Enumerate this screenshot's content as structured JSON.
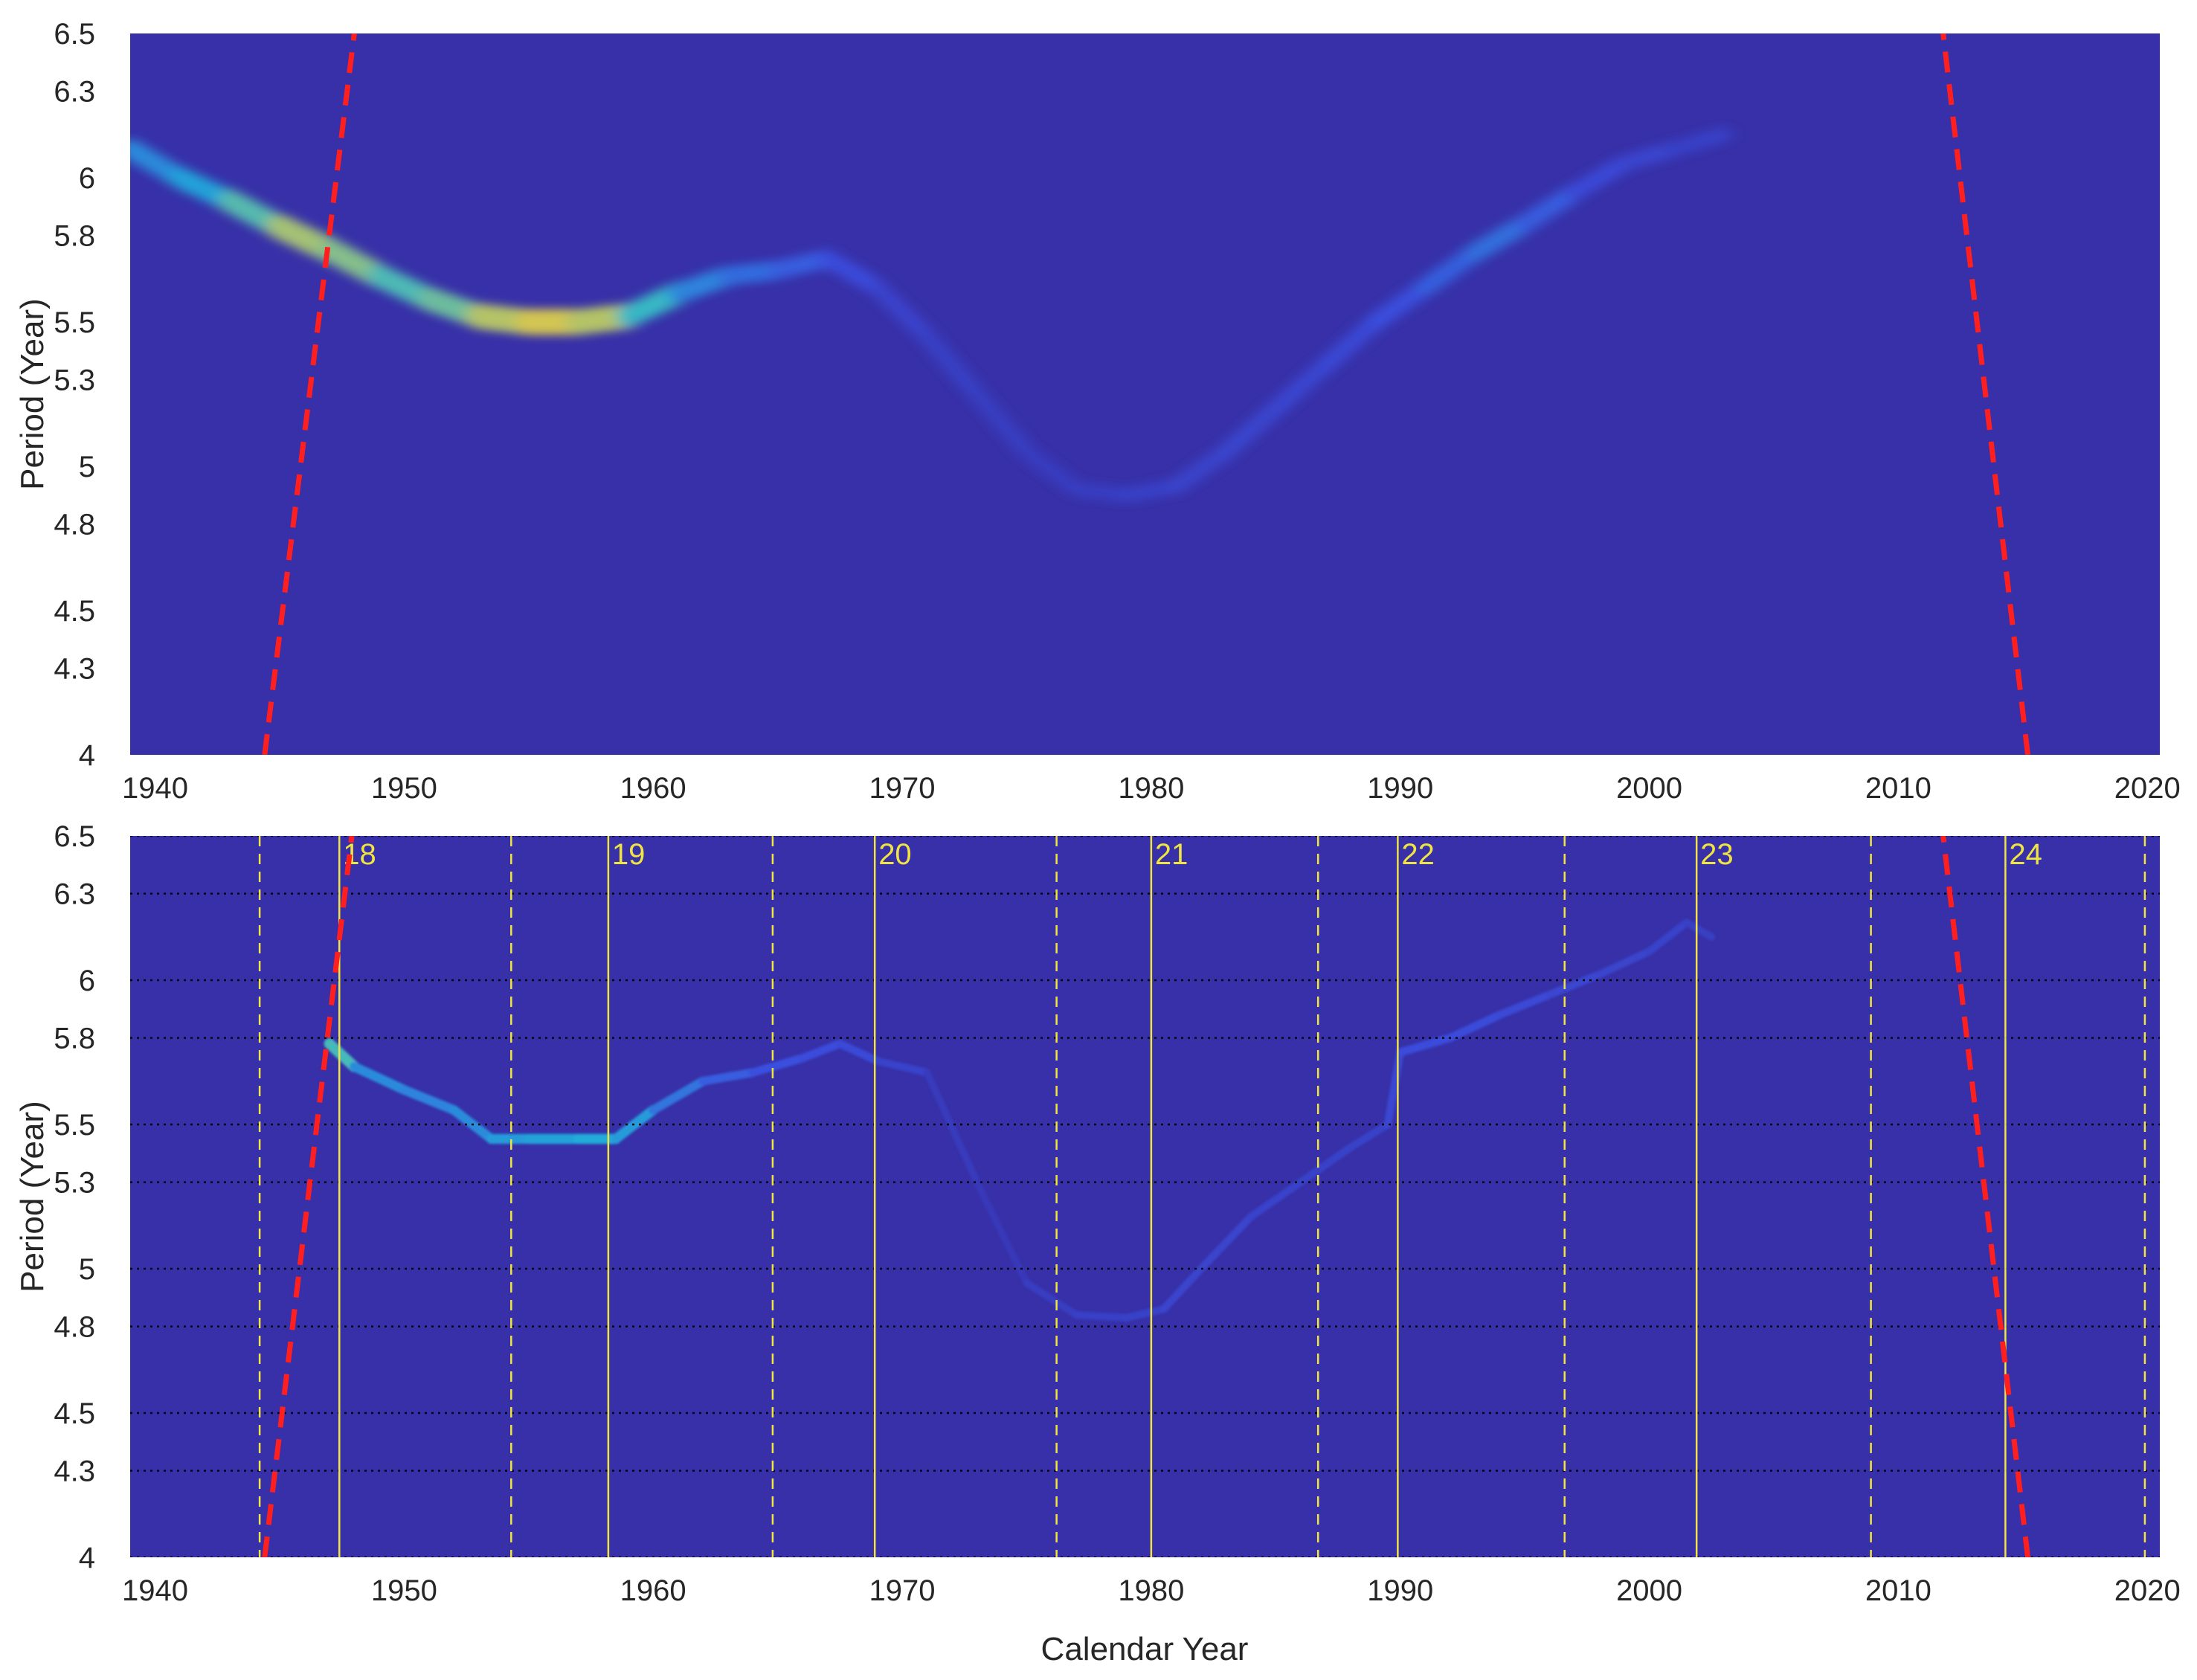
{
  "colors": {
    "background": "#3730a8",
    "ridge_low": "#3b4fe0",
    "ridge_mid": "#1fb5d8",
    "ridge_high": "#f2c83a",
    "cycle_lines": "#f0e442",
    "threshold_lines": "#ff1f1f",
    "grid": "#000000"
  },
  "chart_data": [
    {
      "panel": "top",
      "type": "heatmap",
      "title": "",
      "xlabel": "",
      "ylabel": "Period (Year)",
      "xlim": [
        1939,
        2020.5
      ],
      "ylim": [
        4,
        6.5
      ],
      "x_ticks": [
        "1940",
        "1950",
        "1960",
        "1970",
        "1980",
        "1990",
        "2000",
        "2010",
        "2020"
      ],
      "y_ticks": [
        "4",
        "4.3",
        "4.5",
        "4.8",
        "5",
        "5.3",
        "5.5",
        "5.8",
        "6",
        "6.3",
        "6.5"
      ],
      "grid": false,
      "ridge": {
        "x": [
          1939.0,
          1941.0,
          1943.0,
          1945.0,
          1947.0,
          1949.0,
          1951.0,
          1953.0,
          1955.0,
          1957.0,
          1959.0,
          1961.0,
          1963.0,
          1965.0,
          1967.0,
          1969.0,
          1971.0,
          1973.0,
          1975.0,
          1977.0,
          1979.0,
          1981.0,
          1983.0,
          1985.0,
          1987.0,
          1989.0,
          1991.0,
          1993.0,
          1995.0,
          1997.0,
          1999.0,
          2001.0,
          2003.0
        ],
        "y": [
          6.1,
          6.0,
          5.92,
          5.83,
          5.75,
          5.66,
          5.58,
          5.52,
          5.5,
          5.5,
          5.52,
          5.6,
          5.66,
          5.68,
          5.72,
          5.62,
          5.45,
          5.25,
          5.05,
          4.92,
          4.9,
          4.93,
          5.05,
          5.2,
          5.35,
          5.5,
          5.62,
          5.74,
          5.84,
          5.95,
          6.05,
          6.1,
          6.15
        ],
        "intensity": [
          0.5,
          0.55,
          0.65,
          0.85,
          0.9,
          0.75,
          0.72,
          0.85,
          0.95,
          0.95,
          0.85,
          0.55,
          0.45,
          0.4,
          0.35,
          0.25,
          0.2,
          0.18,
          0.15,
          0.15,
          0.15,
          0.2,
          0.22,
          0.25,
          0.25,
          0.3,
          0.35,
          0.42,
          0.45,
          0.3,
          0.25,
          0.2,
          0.15
        ]
      },
      "threshold_curves": [
        {
          "x": [
            1944.4,
            1948.0
          ],
          "y": [
            4.0,
            6.5
          ]
        },
        {
          "x": [
            2015.2,
            2011.8
          ],
          "y": [
            4.0,
            6.5
          ]
        }
      ]
    },
    {
      "panel": "bottom",
      "type": "heatmap",
      "title": "",
      "xlabel": "Calendar Year",
      "ylabel": "Period (Year)",
      "xlim": [
        1939,
        2020.5
      ],
      "ylim": [
        4,
        6.5
      ],
      "x_ticks": [
        "1940",
        "1950",
        "1960",
        "1970",
        "1980",
        "1990",
        "2000",
        "2010",
        "2020"
      ],
      "y_ticks": [
        "4",
        "4.3",
        "4.5",
        "4.8",
        "5",
        "5.3",
        "5.5",
        "5.8",
        "6",
        "6.3",
        "6.5"
      ],
      "grid": true,
      "ridge": {
        "x": [
          1947.0,
          1948.0,
          1950.0,
          1952.0,
          1953.5,
          1955.0,
          1957.0,
          1958.5,
          1960.0,
          1962.0,
          1964.0,
          1966.0,
          1967.5,
          1969.0,
          1971.0,
          1973.0,
          1975.0,
          1977.0,
          1979.0,
          1980.5,
          1982.0,
          1984.0,
          1986.0,
          1988.0,
          1989.5,
          1990.0,
          1992.0,
          1994.0,
          1996.0,
          1998.0,
          2000.0,
          2001.5,
          2002.5
        ],
        "y": [
          5.78,
          5.7,
          5.62,
          5.55,
          5.45,
          5.45,
          5.45,
          5.45,
          5.55,
          5.65,
          5.68,
          5.73,
          5.78,
          5.72,
          5.68,
          5.3,
          4.95,
          4.84,
          4.83,
          4.86,
          5.0,
          5.18,
          5.3,
          5.42,
          5.5,
          5.75,
          5.8,
          5.88,
          5.95,
          6.02,
          6.1,
          6.2,
          6.15
        ],
        "intensity": [
          0.9,
          0.55,
          0.5,
          0.5,
          0.55,
          0.6,
          0.6,
          0.65,
          0.5,
          0.4,
          0.35,
          0.3,
          0.3,
          0.25,
          0.15,
          0.08,
          0.12,
          0.18,
          0.18,
          0.2,
          0.22,
          0.2,
          0.2,
          0.18,
          0.2,
          0.3,
          0.3,
          0.28,
          0.25,
          0.22,
          0.2,
          0.2,
          0.12
        ]
      },
      "cycle_maxima": [
        {
          "x": 1947.4,
          "label": "18"
        },
        {
          "x": 1958.2,
          "label": "19"
        },
        {
          "x": 1968.9,
          "label": "20"
        },
        {
          "x": 1980.0,
          "label": "21"
        },
        {
          "x": 1989.9,
          "label": "22"
        },
        {
          "x": 2001.9,
          "label": "23"
        },
        {
          "x": 2014.3,
          "label": "24"
        }
      ],
      "cycle_minima": [
        1944.2,
        1954.3,
        1964.8,
        1976.2,
        1986.7,
        1996.6,
        2008.9,
        2019.9
      ],
      "threshold_curves": [
        {
          "x": [
            1944.4,
            1947.9
          ],
          "y": [
            4.0,
            6.5
          ]
        },
        {
          "x": [
            2015.2,
            2011.8
          ],
          "y": [
            4.0,
            6.5
          ]
        }
      ]
    }
  ]
}
